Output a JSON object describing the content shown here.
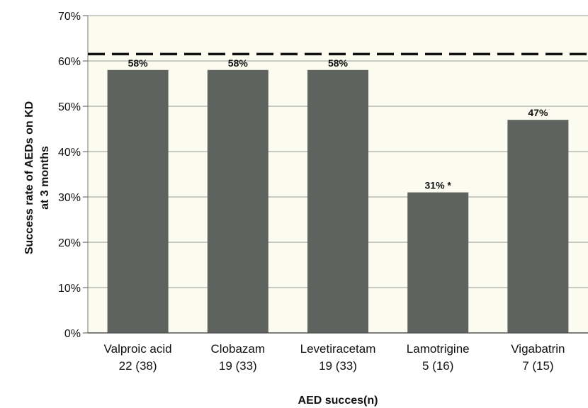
{
  "chart_data": {
    "type": "bar",
    "categories": [
      {
        "name": "Valproic acid",
        "n": "22 (38)"
      },
      {
        "name": "Clobazam",
        "n": "19 (33)"
      },
      {
        "name": "Levetiracetam",
        "n": "19 (33)"
      },
      {
        "name": "Lamotrigine",
        "n": "5 (16)"
      },
      {
        "name": "Vigabatrin",
        "n": "7 (15)"
      }
    ],
    "values": [
      58,
      58,
      58,
      31,
      47
    ],
    "data_labels": [
      "58%",
      "58%",
      "58%",
      "31% *",
      "47%"
    ],
    "reference_line": {
      "value": 61.5,
      "style": "dashed"
    },
    "xlabel": "AED succes(n)",
    "ylabel": [
      "Success rate of AEDs on KD",
      "at 3 months"
    ],
    "ylim": [
      0,
      70
    ],
    "yticks": [
      "0%",
      "10%",
      "20%",
      "30%",
      "40%",
      "50%",
      "60%",
      "70%"
    ],
    "grid": "horizontal",
    "background": "#fbfbef",
    "colors": {
      "bar": "#5f6360",
      "grid": "#999999",
      "reference": "#111111"
    }
  }
}
